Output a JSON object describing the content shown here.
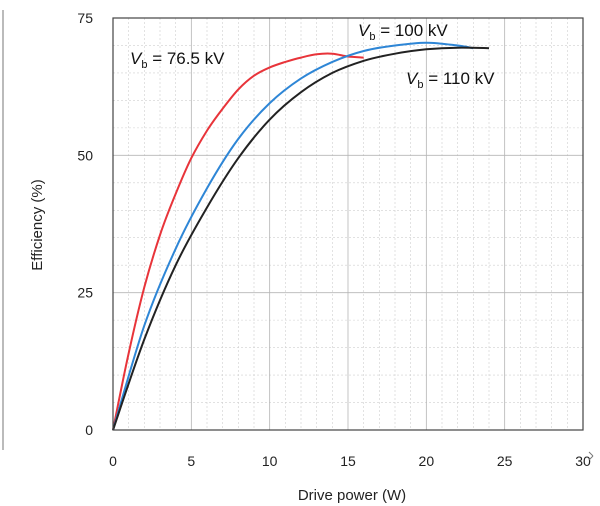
{
  "chart_data": {
    "type": "line",
    "xlabel": "Drive power (W)",
    "ylabel": "Efficiency (%)",
    "xlim": [
      0,
      30
    ],
    "ylim": [
      0,
      75
    ],
    "xticks": [
      "0",
      "5",
      "10",
      "15",
      "20",
      "25",
      "30"
    ],
    "yticks": [
      "0",
      "25",
      "50",
      "75"
    ],
    "grid": true,
    "series": [
      {
        "name": "V_b = 76.5 kV",
        "label_main": "V",
        "label_sub": "b",
        "label_rest": " = 76.5 kV",
        "color": "#e8343a",
        "x": [
          0,
          1,
          2,
          3,
          4,
          5,
          6,
          7,
          8,
          9,
          10,
          11,
          12,
          13,
          14,
          15,
          16
        ],
        "y": [
          0,
          14,
          26,
          35.5,
          43,
          49.5,
          54.5,
          58.5,
          62,
          64.5,
          66,
          67,
          67.8,
          68.4,
          68.5,
          68,
          67.8
        ]
      },
      {
        "name": "V_b = 100 kV",
        "label_main": "V",
        "label_sub": "b",
        "label_rest": " = 100 kV",
        "color": "#2e86d6",
        "x": [
          0,
          2,
          4,
          6,
          8,
          10,
          12,
          14,
          16,
          18,
          20,
          22,
          23
        ],
        "y": [
          0,
          19,
          33,
          44,
          53,
          59.5,
          64,
          67,
          69,
          70,
          70.5,
          70,
          69.5
        ]
      },
      {
        "name": "V_b = 110 kV",
        "label_main": "V",
        "label_sub": "b",
        "label_rest": " = 110 kV",
        "color": "#222222",
        "x": [
          0,
          2,
          4,
          6,
          8,
          10,
          12,
          14,
          16,
          18,
          20,
          22,
          24
        ],
        "y": [
          0,
          16.5,
          30,
          40.5,
          49.5,
          56.5,
          61.5,
          65,
          67.2,
          68.5,
          69.3,
          69.6,
          69.5
        ]
      }
    ]
  }
}
